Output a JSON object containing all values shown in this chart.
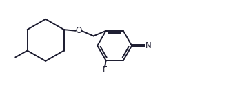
{
  "bg_color": "#ffffff",
  "bond_color": "#1a1a2e",
  "atom_color": "#1a1a2e",
  "line_width": 1.4,
  "font_size": 8.5,
  "fig_width": 3.51,
  "fig_height": 1.5,
  "dpi": 100,
  "xlim": [
    0,
    10.0
  ],
  "ylim": [
    0,
    4.28
  ]
}
